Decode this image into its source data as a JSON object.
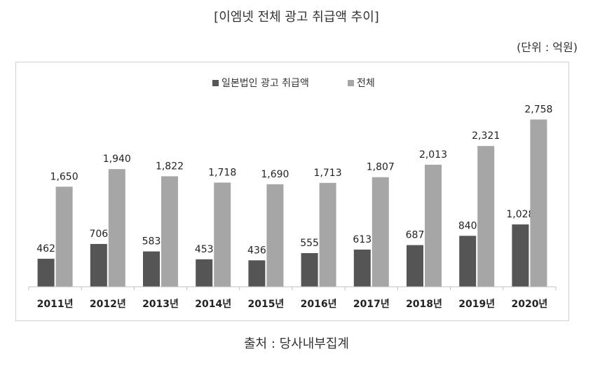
{
  "header": {
    "title": "[이엠넷 전체 광고 취급액 추이]",
    "unit": "(단위 : 억원)"
  },
  "footer": {
    "source": "출처 : 당사내부집계"
  },
  "colors": {
    "series_dark": "#555555",
    "series_light": "#a6a6a6",
    "axis": "#bfbfbf"
  },
  "chart_data": {
    "type": "bar",
    "title": "[이엠넷 전체 광고 취급액 추이]",
    "categories": [
      "2011년",
      "2012년",
      "2013년",
      "2014년",
      "2015년",
      "2016년",
      "2017년",
      "2018년",
      "2019년",
      "2020년"
    ],
    "series": [
      {
        "name": "일본법인 광고 취급액",
        "values": [
          462,
          706,
          583,
          453,
          436,
          555,
          613,
          687,
          840,
          1028
        ],
        "labels": [
          "462",
          "706",
          "583",
          "453",
          "436",
          "555",
          "613",
          "687",
          "840",
          "1,028"
        ]
      },
      {
        "name": "전체",
        "values": [
          1650,
          1940,
          1822,
          1718,
          1690,
          1713,
          1807,
          2013,
          2321,
          2758
        ],
        "labels": [
          "1,650",
          "1,940",
          "1,822",
          "1,718",
          "1,690",
          "1,713",
          "1,807",
          "2,013",
          "2,321",
          "2,758"
        ]
      }
    ],
    "xlabel": "",
    "ylabel": "",
    "ylim": [
      0,
      3000
    ],
    "grid": false,
    "legend_position": "top-center"
  }
}
